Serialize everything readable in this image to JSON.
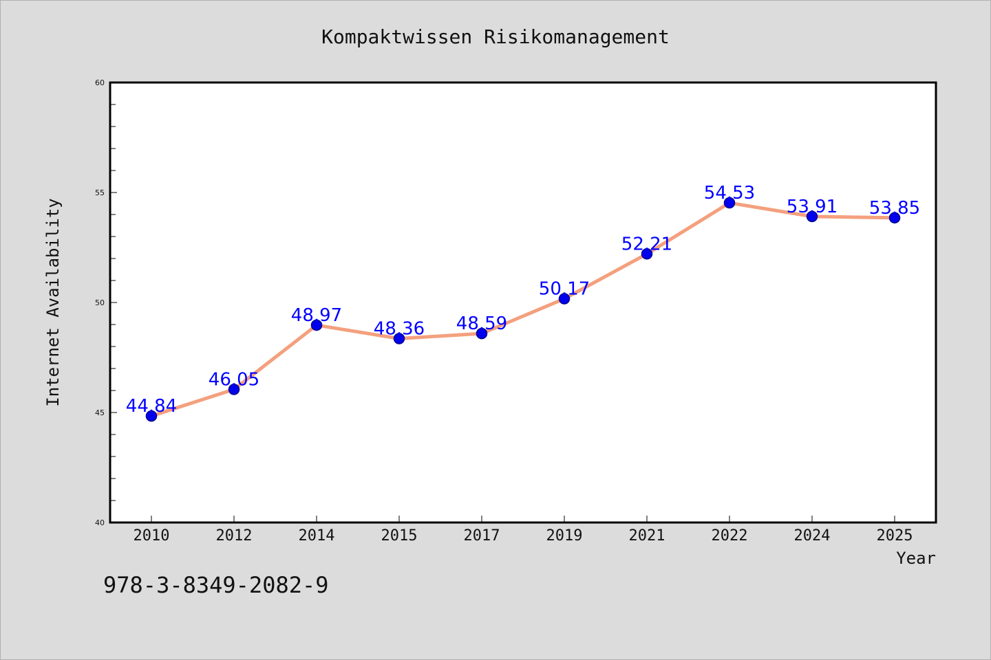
{
  "chart_data": {
    "type": "line",
    "title": "Kompaktwissen Risikomanagement",
    "xlabel": "Year",
    "ylabel": "Internet Availability",
    "categories": [
      "2010",
      "2012",
      "2014",
      "2015",
      "2017",
      "2019",
      "2021",
      "2022",
      "2024",
      "2025"
    ],
    "series": [
      {
        "values": [
          44.84,
          46.05,
          48.97,
          48.36,
          48.59,
          50.17,
          52.21,
          54.53,
          53.91,
          53.85
        ],
        "labels": [
          "44.84",
          "46.05",
          "48.97",
          "48.36",
          "48.59",
          "50.17",
          "52.21",
          "54.53",
          "53.91",
          "53.85"
        ]
      }
    ],
    "ylim": [
      40,
      60
    ],
    "yticks": [
      "40",
      "45",
      "50",
      "55",
      "60"
    ],
    "grid": false,
    "legend": "none",
    "colors": {
      "line": "#f4a07e",
      "marker": "#0000ee",
      "marker_edge": "#00008b",
      "label": "#0000ff"
    }
  },
  "footer": {
    "isbn": "978-3-8349-2082-9"
  }
}
